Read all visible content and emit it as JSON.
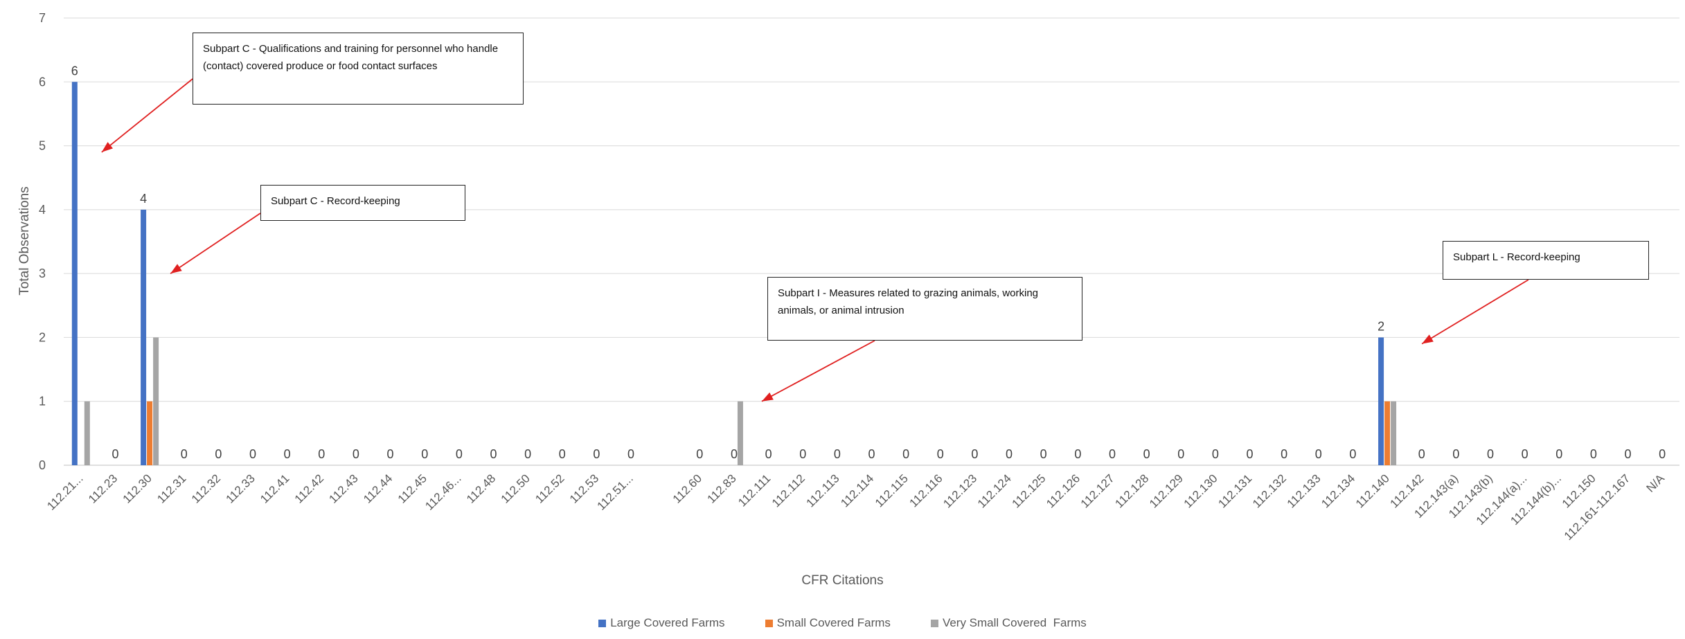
{
  "chart_data": {
    "type": "bar",
    "xlabel": "CFR Citations",
    "ylabel": "Total Observations",
    "ylim": [
      0,
      7
    ],
    "yticks": [
      0,
      1,
      2,
      3,
      4,
      5,
      6,
      7
    ],
    "grid": true,
    "legend_position": "bottom",
    "categories": [
      "112.21...",
      "112.23",
      "112.30",
      "112.31",
      "112.32",
      "112.33",
      "112.41",
      "112.42",
      "112.43",
      "112.44",
      "112.45",
      "112.46...",
      "112.48",
      "112.50",
      "112.52",
      "112.53",
      "112.51...",
      "",
      "112.60",
      "112.83",
      "112.111",
      "112.112",
      "112.113",
      "112.114",
      "112.115",
      "112.116",
      "112.123",
      "112.124",
      "112.125",
      "112.126",
      "112.127",
      "112.128",
      "112.129",
      "112.130",
      "112.131",
      "112.132",
      "112.133",
      "112.134",
      "112.140",
      "112.142",
      "112.143(a)",
      "112.143(b)",
      "112.144(a)...",
      "112.144(b)...",
      "112.150",
      "112.161-112.167",
      "N/A"
    ],
    "series": [
      {
        "name": "Large Covered Farms",
        "color": "#4472C4",
        "values": [
          6,
          0,
          4,
          0,
          0,
          0,
          0,
          0,
          0,
          0,
          0,
          0,
          0,
          0,
          0,
          0,
          0,
          0,
          0,
          0,
          0,
          0,
          0,
          0,
          0,
          0,
          0,
          0,
          0,
          0,
          0,
          0,
          0,
          0,
          0,
          0,
          0,
          0,
          2,
          0,
          0,
          0,
          0,
          0,
          0,
          0,
          0
        ]
      },
      {
        "name": "Small Covered Farms",
        "color": "#ED7D31",
        "values": [
          0,
          0,
          1,
          0,
          0,
          0,
          0,
          0,
          0,
          0,
          0,
          0,
          0,
          0,
          0,
          0,
          0,
          0,
          0,
          0,
          0,
          0,
          0,
          0,
          0,
          0,
          0,
          0,
          0,
          0,
          0,
          0,
          0,
          0,
          0,
          0,
          0,
          0,
          1,
          0,
          0,
          0,
          0,
          0,
          0,
          0,
          0
        ]
      },
      {
        "name": "Very Small Covered  Farms",
        "color": "#A5A5A5",
        "values": [
          1,
          0,
          2,
          0,
          0,
          0,
          0,
          0,
          0,
          0,
          0,
          0,
          0,
          0,
          0,
          0,
          0,
          0,
          0,
          1,
          0,
          0,
          0,
          0,
          0,
          0,
          0,
          0,
          0,
          0,
          0,
          0,
          0,
          0,
          0,
          0,
          0,
          0,
          1,
          0,
          0,
          0,
          0,
          0,
          0,
          0,
          0
        ]
      }
    ],
    "data_labels": [
      {
        "category_index": 0,
        "text": "6"
      },
      {
        "category_index": 1,
        "text": "0"
      },
      {
        "category_index": 2,
        "text": "4"
      },
      {
        "category_index": 3,
        "text": "0"
      },
      {
        "category_index": 4,
        "text": "0"
      },
      {
        "category_index": 5,
        "text": "0"
      },
      {
        "category_index": 6,
        "text": "0"
      },
      {
        "category_index": 7,
        "text": "0"
      },
      {
        "category_index": 8,
        "text": "0"
      },
      {
        "category_index": 9,
        "text": "0"
      },
      {
        "category_index": 10,
        "text": "0"
      },
      {
        "category_index": 11,
        "text": "0"
      },
      {
        "category_index": 12,
        "text": "0"
      },
      {
        "category_index": 13,
        "text": "0"
      },
      {
        "category_index": 14,
        "text": "0"
      },
      {
        "category_index": 15,
        "text": "0"
      },
      {
        "category_index": 16,
        "text": "0"
      },
      {
        "category_index": 18,
        "text": "0"
      },
      {
        "category_index": 19,
        "text": "0"
      },
      {
        "category_index": 20,
        "text": "0"
      },
      {
        "category_index": 21,
        "text": "0"
      },
      {
        "category_index": 22,
        "text": "0"
      },
      {
        "category_index": 23,
        "text": "0"
      },
      {
        "category_index": 24,
        "text": "0"
      },
      {
        "category_index": 25,
        "text": "0"
      },
      {
        "category_index": 26,
        "text": "0"
      },
      {
        "category_index": 27,
        "text": "0"
      },
      {
        "category_index": 28,
        "text": "0"
      },
      {
        "category_index": 29,
        "text": "0"
      },
      {
        "category_index": 30,
        "text": "0"
      },
      {
        "category_index": 31,
        "text": "0"
      },
      {
        "category_index": 32,
        "text": "0"
      },
      {
        "category_index": 33,
        "text": "0"
      },
      {
        "category_index": 34,
        "text": "0"
      },
      {
        "category_index": 35,
        "text": "0"
      },
      {
        "category_index": 36,
        "text": "0"
      },
      {
        "category_index": 37,
        "text": "0"
      },
      {
        "category_index": 38,
        "text": "2"
      },
      {
        "category_index": 39,
        "text": "0"
      },
      {
        "category_index": 40,
        "text": "0"
      },
      {
        "category_index": 41,
        "text": "0"
      },
      {
        "category_index": 42,
        "text": "0"
      },
      {
        "category_index": 43,
        "text": "0"
      },
      {
        "category_index": 44,
        "text": "0"
      },
      {
        "category_index": 45,
        "text": "0"
      },
      {
        "category_index": 46,
        "text": "0"
      }
    ],
    "annotations": [
      {
        "text": "Subpart C - Qualifications and training for personnel who handle (contact) covered produce or food contact surfaces",
        "points_to_category_index": 0
      },
      {
        "text": "Subpart C - Record-keeping",
        "points_to_category_index": 2
      },
      {
        "text": "Subpart I - Measures related to grazing animals, working animals, or animal intrusion",
        "points_to_category_index": 19
      },
      {
        "text": "Subpart L - Record-keeping",
        "points_to_category_index": 38
      }
    ],
    "arrow_color": "#E02020"
  }
}
